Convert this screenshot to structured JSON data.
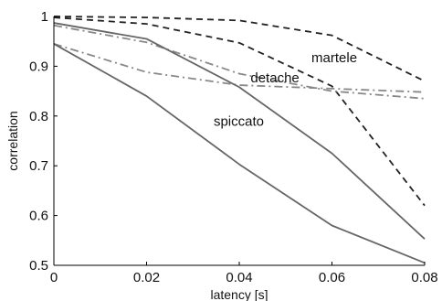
{
  "chart_data": {
    "type": "line",
    "xlabel": "latency [s]",
    "ylabel": "correlation",
    "xlim": [
      0,
      0.08
    ],
    "ylim": [
      0.5,
      1
    ],
    "x_ticks": [
      "0",
      "0.02",
      "0.04",
      "0.06",
      "0.08"
    ],
    "y_ticks": [
      "0.5",
      "0.6",
      "0.7",
      "0.8",
      "0.9",
      "1"
    ],
    "grid": false,
    "x": [
      0,
      0.02,
      0.04,
      0.06,
      0.08
    ],
    "series": [
      {
        "group": "martele",
        "style": "dashed",
        "color": "#222222",
        "values": [
          1.0,
          0.998,
          0.992,
          0.962,
          0.87
        ]
      },
      {
        "group": "martele",
        "style": "dashed",
        "color": "#222222",
        "values": [
          0.998,
          0.985,
          0.947,
          0.86,
          0.62
        ]
      },
      {
        "group": "detache",
        "style": "dashdot",
        "color": "#888888",
        "values": [
          0.945,
          0.888,
          0.862,
          0.855,
          0.848
        ]
      },
      {
        "group": "detache",
        "style": "dashdot",
        "color": "#888888",
        "values": [
          0.982,
          0.948,
          0.885,
          0.85,
          0.835
        ]
      },
      {
        "group": "spiccato",
        "style": "solid",
        "color": "#666666",
        "values": [
          0.987,
          0.955,
          0.858,
          0.725,
          0.553
        ]
      },
      {
        "group": "spiccato",
        "style": "solid",
        "color": "#666666",
        "values": [
          0.945,
          0.84,
          0.703,
          0.58,
          0.505
        ]
      }
    ],
    "annotations": [
      {
        "text": "martele",
        "x": 0.0605,
        "y": 0.908
      },
      {
        "text": "detache",
        "x": 0.0477,
        "y": 0.868
      },
      {
        "text": "spiccato",
        "x": 0.0399,
        "y": 0.78
      }
    ]
  }
}
